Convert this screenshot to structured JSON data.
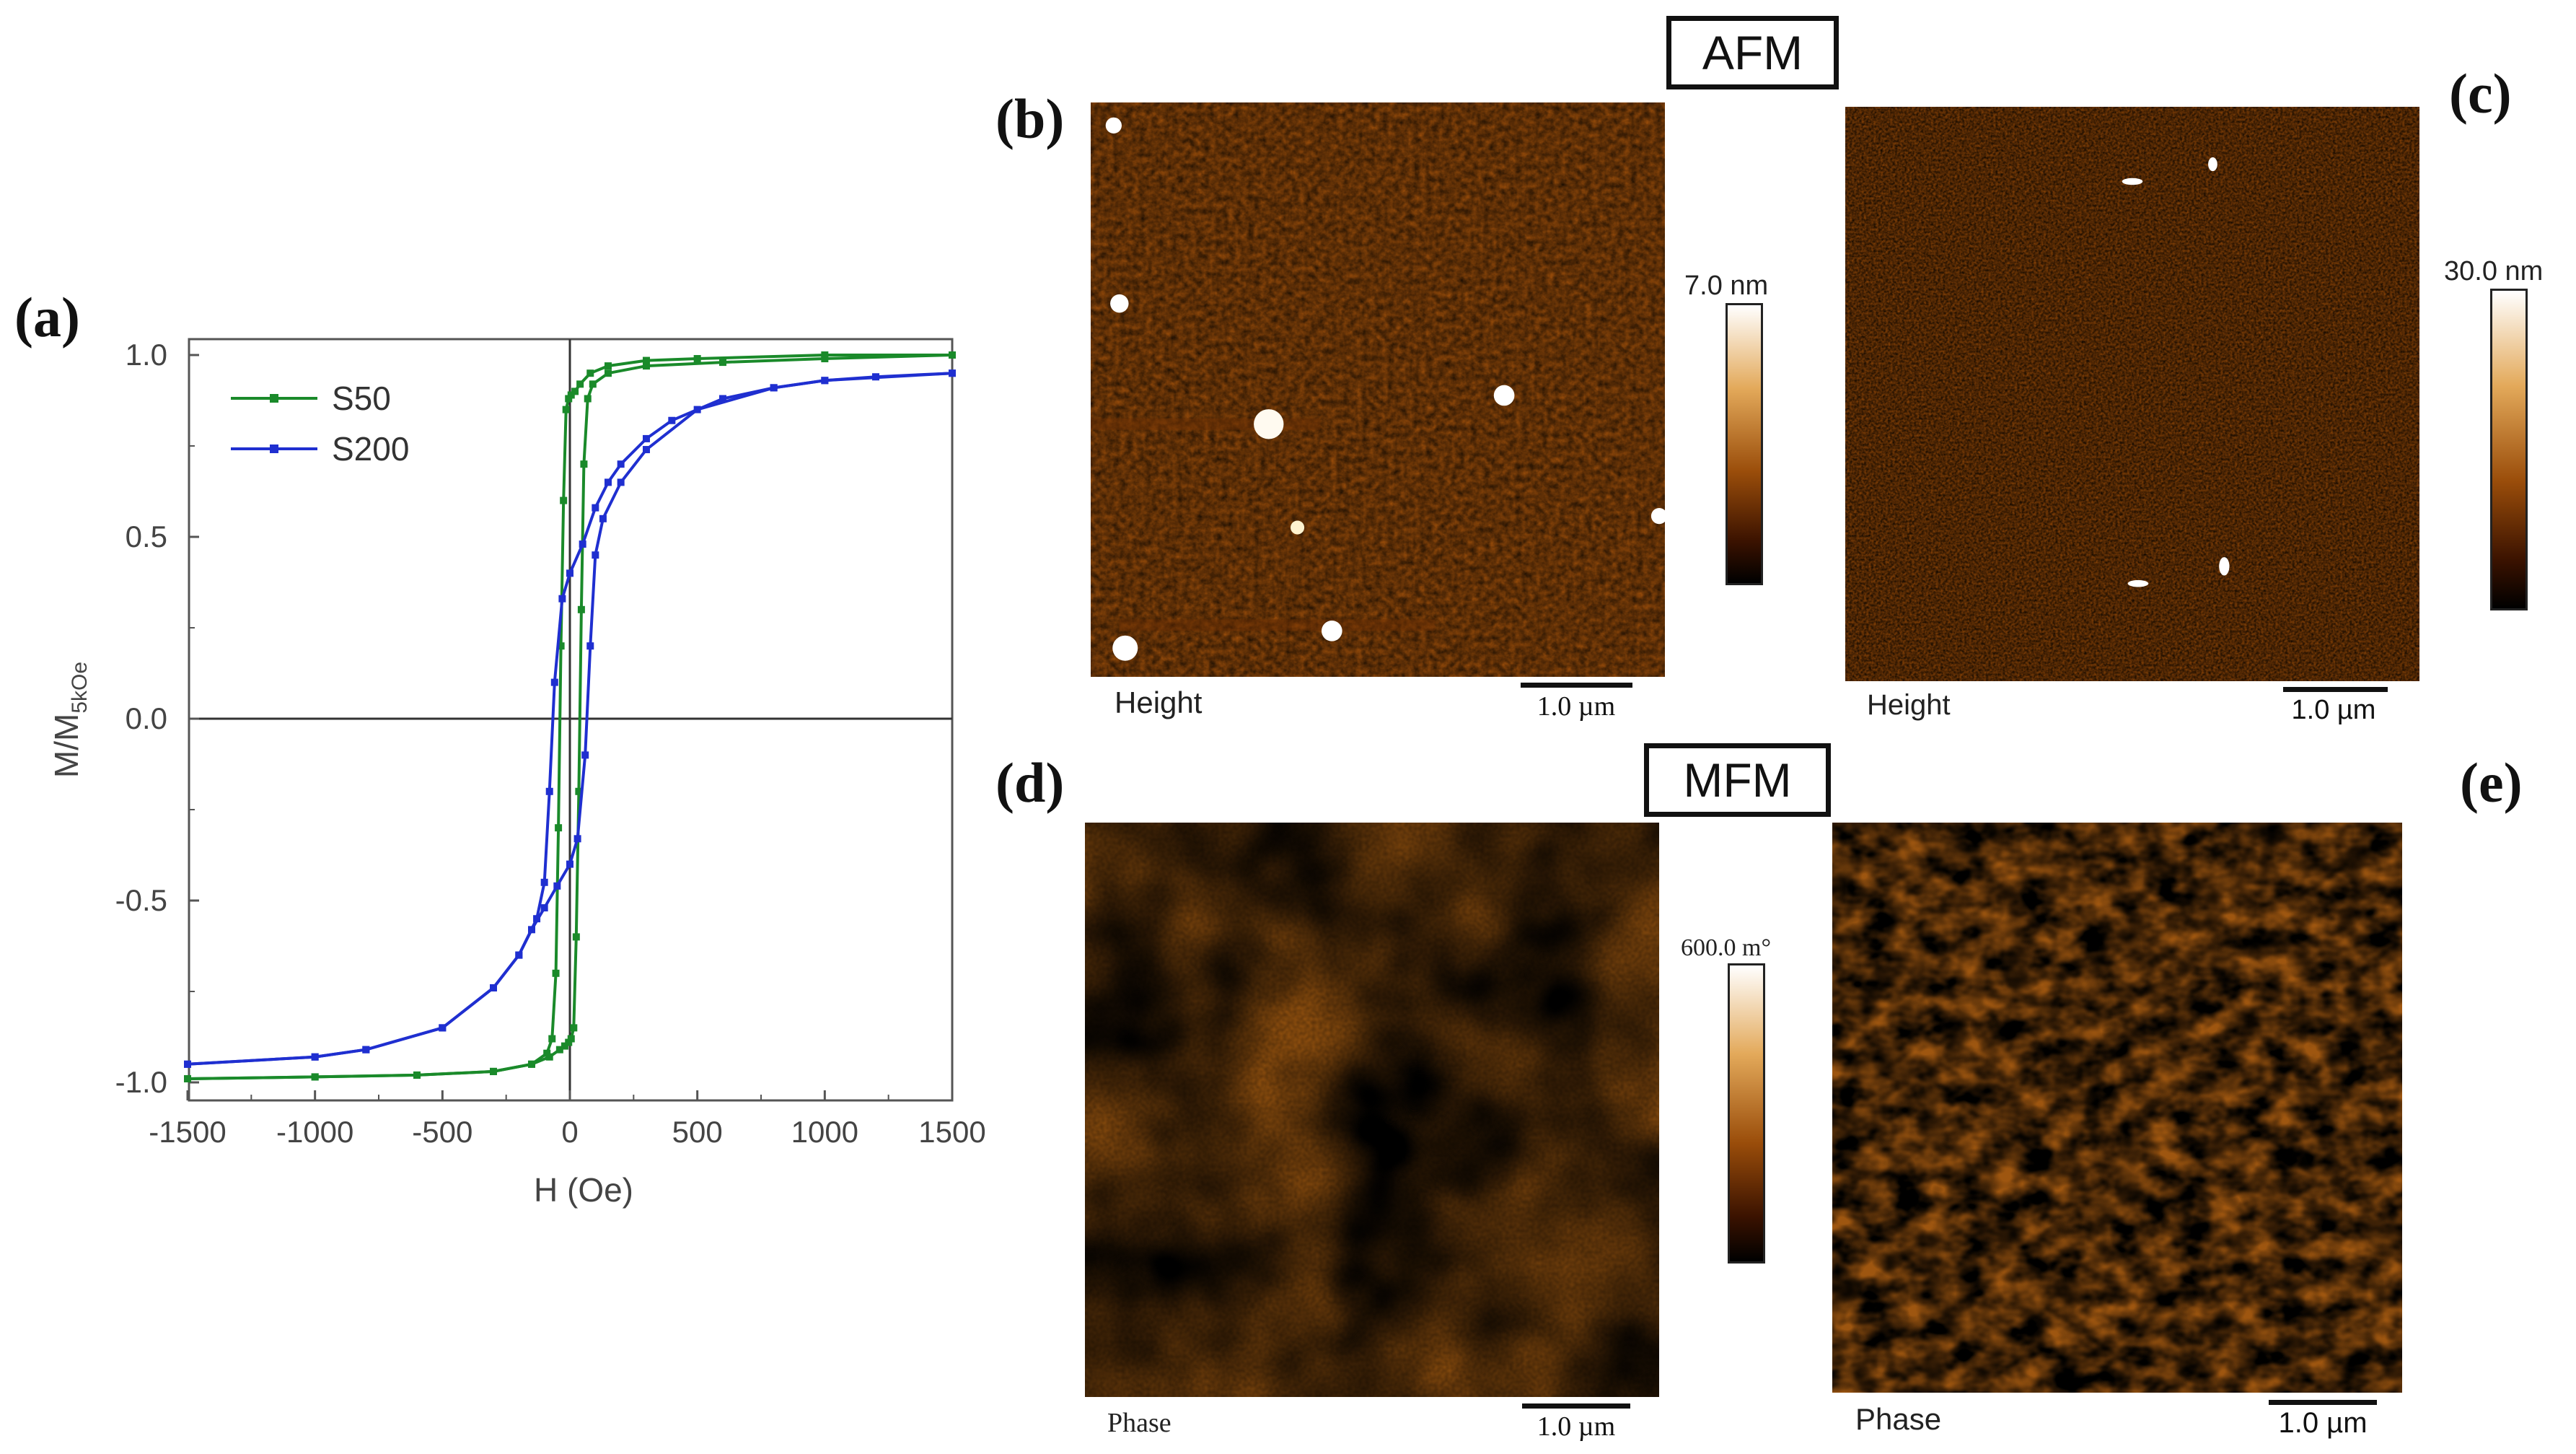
{
  "panels": {
    "a": "(a)",
    "b": "(b)",
    "c": "(c)",
    "d": "(d)",
    "e": "(e)"
  },
  "section_labels": {
    "afm": "AFM",
    "mfm": "MFM"
  },
  "images": {
    "b": {
      "caption": "Height",
      "scale": "1.0 µm",
      "colorbar": "7.0 nm"
    },
    "c": {
      "caption": "Height",
      "scale": "1.0 µm",
      "colorbar": "30.0 nm"
    },
    "d": {
      "caption": "Phase",
      "scale": "1.0 µm",
      "colorbar": "600.0 m°"
    },
    "e": {
      "caption": "Phase",
      "scale": "1.0 µm"
    }
  },
  "colors": {
    "s50": "#1a8a2a",
    "s200": "#1f2fd0",
    "afm_mid": "#a4520c",
    "mfm_mid": "#b36d14"
  },
  "chart_data": {
    "type": "line",
    "title": "",
    "xlabel": "H (Oe)",
    "ylabel": "M/M5kOe",
    "ylabel_main": "M/M",
    "ylabel_sub": "5kOe",
    "xlim": [
      -1500,
      1500
    ],
    "ylim": [
      -1.05,
      1.05
    ],
    "xticks": [
      -1500,
      -1000,
      -500,
      0,
      500,
      1000,
      1500
    ],
    "xtick_labels": [
      "-1500",
      "-1000",
      "-500",
      "0",
      "500",
      "1000",
      "1500"
    ],
    "yticks": [
      -1.0,
      -0.5,
      0.0,
      0.5,
      1.0
    ],
    "ytick_labels": [
      "-1.0",
      "-0.5",
      "0.0",
      "0.5",
      "1.0"
    ],
    "legend_position": "top-left",
    "series": [
      {
        "name": "S50",
        "descending": {
          "x": [
            1500,
            1000,
            500,
            300,
            150,
            80,
            40,
            20,
            5,
            -5,
            -15,
            -25,
            -35,
            -45,
            -55,
            -70,
            -90,
            -150,
            -300,
            -600,
            -1000,
            -1500
          ],
          "y": [
            1.0,
            1.0,
            0.99,
            0.985,
            0.97,
            0.95,
            0.92,
            0.9,
            0.89,
            0.88,
            0.85,
            0.6,
            0.2,
            -0.3,
            -0.7,
            -0.88,
            -0.92,
            -0.95,
            -0.97,
            -0.98,
            -0.985,
            -0.99
          ]
        },
        "ascending": {
          "x": [
            -1500,
            -1000,
            -600,
            -300,
            -150,
            -80,
            -40,
            -20,
            -5,
            5,
            15,
            25,
            35,
            45,
            55,
            70,
            90,
            150,
            300,
            600,
            1000,
            1500
          ],
          "y": [
            -0.99,
            -0.985,
            -0.98,
            -0.97,
            -0.95,
            -0.93,
            -0.91,
            -0.9,
            -0.89,
            -0.88,
            -0.85,
            -0.6,
            -0.2,
            0.3,
            0.7,
            0.88,
            0.92,
            0.95,
            0.97,
            0.98,
            0.99,
            1.0
          ]
        }
      },
      {
        "name": "S200",
        "descending": {
          "x": [
            1500,
            1200,
            1000,
            800,
            600,
            400,
            300,
            200,
            150,
            100,
            50,
            0,
            -30,
            -60,
            -80,
            -100,
            -130,
            -200,
            -300,
            -500,
            -800,
            -1000,
            -1500
          ],
          "y": [
            0.95,
            0.94,
            0.93,
            0.91,
            0.88,
            0.82,
            0.77,
            0.7,
            0.65,
            0.58,
            0.48,
            0.4,
            0.33,
            0.1,
            -0.2,
            -0.45,
            -0.55,
            -0.65,
            -0.74,
            -0.85,
            -0.91,
            -0.93,
            -0.95
          ]
        },
        "ascending": {
          "x": [
            -1500,
            -1000,
            -800,
            -500,
            -300,
            -200,
            -150,
            -100,
            -50,
            0,
            30,
            60,
            80,
            100,
            130,
            200,
            300,
            500,
            800,
            1000,
            1500
          ],
          "y": [
            -0.95,
            -0.93,
            -0.91,
            -0.85,
            -0.74,
            -0.65,
            -0.58,
            -0.52,
            -0.46,
            -0.4,
            -0.33,
            -0.1,
            0.2,
            0.45,
            0.55,
            0.65,
            0.74,
            0.85,
            0.91,
            0.93,
            0.95
          ]
        }
      }
    ]
  }
}
